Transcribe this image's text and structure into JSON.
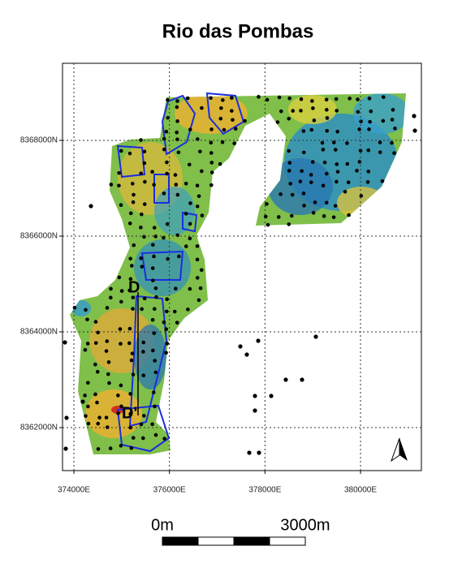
{
  "map": {
    "title": "Rio das Pombas",
    "xlim": [
      373762,
      381274
    ],
    "ylim": [
      8361102,
      8369610
    ],
    "xticks": [
      {
        "value": 374000,
        "label": "374000E"
      },
      {
        "value": 376000,
        "label": "376000E"
      },
      {
        "value": 378000,
        "label": "378000E"
      },
      {
        "value": 380000,
        "label": "380000E"
      }
    ],
    "yticks": [
      {
        "value": 8362000,
        "label": "8362000N"
      },
      {
        "value": 8364000,
        "label": "8364000N"
      },
      {
        "value": 8366000,
        "label": "8366000N"
      },
      {
        "value": 8368000,
        "label": "8368000N"
      }
    ],
    "profile": {
      "start": "D",
      "end": "D'"
    },
    "scale_bar": {
      "start": "0m",
      "end": "3000m"
    }
  }
}
